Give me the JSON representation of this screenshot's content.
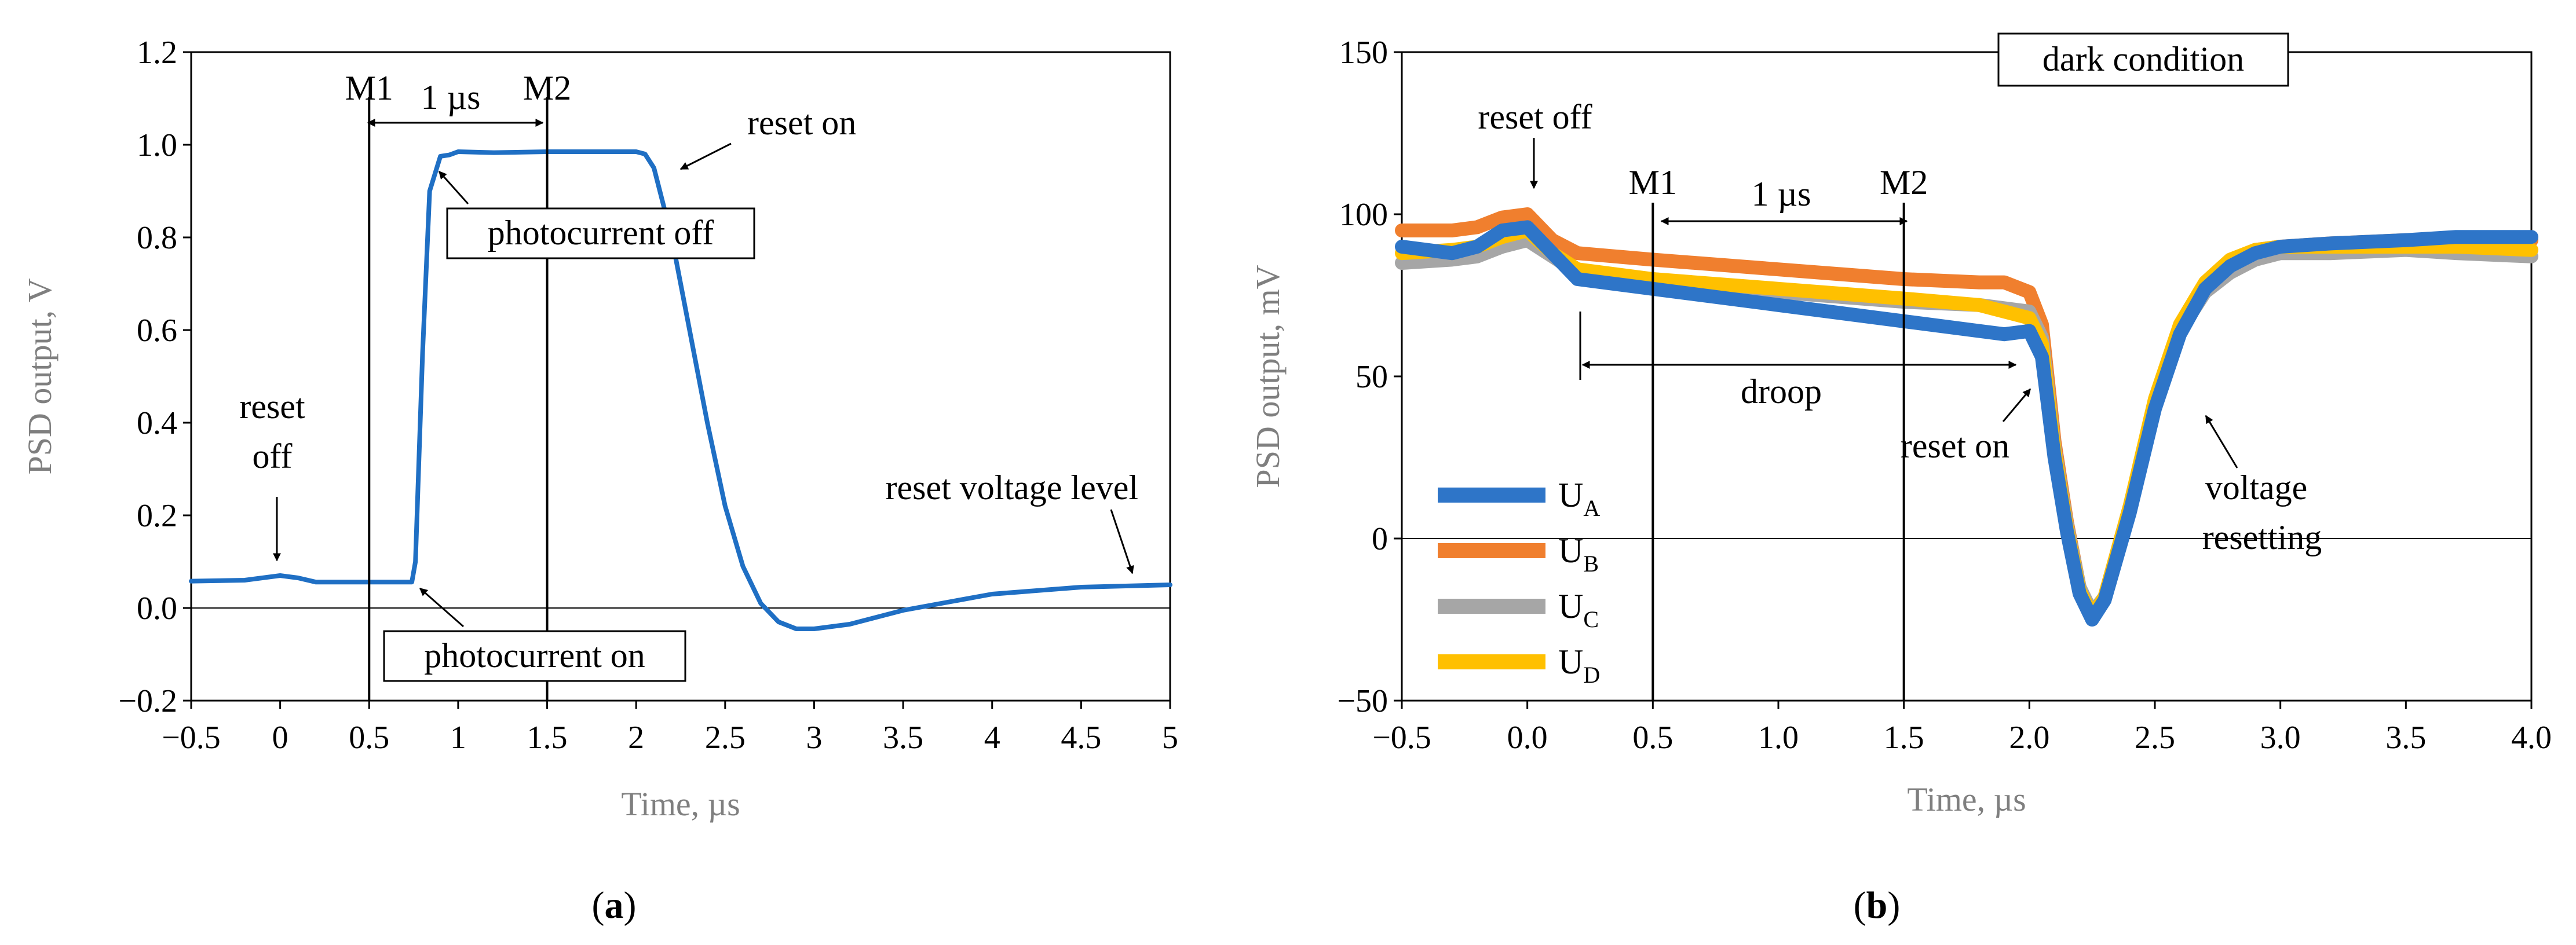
{
  "captions": {
    "a_open": "(",
    "a_letter": "a",
    "a_close": ")",
    "b_open": "(",
    "b_letter": "b",
    "b_close": ")"
  },
  "chart_data": [
    {
      "id": "a",
      "type": "line",
      "title": "",
      "xlabel": "Time, µs",
      "ylabel": "PSD output, V",
      "xlim": [
        -0.5,
        5
      ],
      "ylim": [
        -0.2,
        1.2
      ],
      "xticks": [
        -0.5,
        0,
        0.5,
        1,
        1.5,
        2,
        2.5,
        3,
        3.5,
        4,
        4.5,
        5
      ],
      "xtick_labels": [
        "−0.5",
        "0",
        "0.5",
        "1",
        "1.5",
        "2",
        "2.5",
        "3",
        "3.5",
        "4",
        "4.5",
        "5"
      ],
      "yticks": [
        -0.2,
        0,
        0.2,
        0.4,
        0.6,
        0.8,
        1,
        1.2
      ],
      "ytick_labels": [
        "−0.2",
        "0.0",
        "0.2",
        "0.4",
        "0.6",
        "0.8",
        "1.0",
        "1.2"
      ],
      "grid": false,
      "color": "#1f6fc4",
      "series": [
        {
          "name": "PSD output",
          "x": [
            -0.5,
            -0.2,
            -0.1,
            0.0,
            0.1,
            0.2,
            0.5,
            0.74,
            0.76,
            0.8,
            0.84,
            0.9,
            0.95,
            1.0,
            1.2,
            1.5,
            1.8,
            2.0,
            2.05,
            2.1,
            2.2,
            2.3,
            2.4,
            2.5,
            2.6,
            2.7,
            2.8,
            2.9,
            3.0,
            3.2,
            3.5,
            4.0,
            4.5,
            5.0
          ],
          "y": [
            0.058,
            0.06,
            0.065,
            0.07,
            0.065,
            0.056,
            0.056,
            0.056,
            0.1,
            0.55,
            0.9,
            0.975,
            0.978,
            0.985,
            0.983,
            0.985,
            0.985,
            0.985,
            0.98,
            0.95,
            0.8,
            0.6,
            0.4,
            0.22,
            0.09,
            0.01,
            -0.03,
            -0.045,
            -0.045,
            -0.035,
            -0.005,
            0.03,
            0.045,
            0.05
          ]
        }
      ],
      "markers": [
        {
          "label": "M1",
          "x": 0.5
        },
        {
          "label": "M2",
          "x": 1.5
        }
      ],
      "annotations": [
        {
          "text": "1 µs",
          "from_x": 0.5,
          "to_x": 1.5,
          "y": 1.1
        },
        {
          "text": "reset on"
        },
        {
          "text": "photocurrent off"
        },
        {
          "text": "reset off"
        },
        {
          "text": "photocurrent on"
        },
        {
          "text": "reset voltage level"
        }
      ],
      "annotation_lines": {
        "reset_off": [
          "reset",
          "off"
        ]
      }
    },
    {
      "id": "b",
      "type": "line",
      "title": "dark condition",
      "xlabel": "Time, µs",
      "ylabel": "PSD output, mV",
      "xlim": [
        -0.5,
        4.0
      ],
      "ylim": [
        -50,
        150
      ],
      "xticks": [
        -0.5,
        0.0,
        0.5,
        1.0,
        1.5,
        2.0,
        2.5,
        3.0,
        3.5,
        4.0
      ],
      "xtick_labels": [
        "−0.5",
        "0.0",
        "0.5",
        "1.0",
        "1.5",
        "2.0",
        "2.5",
        "3.0",
        "3.5",
        "4.0"
      ],
      "yticks": [
        -50,
        0,
        50,
        100,
        150
      ],
      "ytick_labels": [
        "−50",
        "0",
        "50",
        "100",
        "150"
      ],
      "grid": false,
      "legend": "bottom-left",
      "series": [
        {
          "name": "U",
          "sub": "B",
          "color": "#f07f2e",
          "x": [
            -0.5,
            -0.3,
            -0.2,
            -0.1,
            0.0,
            0.1,
            0.2,
            0.5,
            1.0,
            1.5,
            1.8,
            1.9,
            2.0,
            2.05,
            2.1,
            2.15,
            2.2,
            2.25,
            2.3,
            2.4,
            2.5,
            2.6,
            2.7,
            2.8,
            2.9,
            3.0,
            3.2,
            3.5,
            3.7,
            4.0
          ],
          "y": [
            95,
            95,
            96,
            99,
            100,
            92,
            88,
            86,
            83,
            80,
            79,
            79,
            76,
            66,
            30,
            5,
            -15,
            -24,
            -18,
            10,
            42,
            65,
            78,
            85,
            89,
            90,
            91,
            92,
            92,
            92
          ]
        },
        {
          "name": "U",
          "sub": "C",
          "color": "#a6a6a6",
          "x": [
            -0.5,
            -0.3,
            -0.2,
            -0.1,
            0.0,
            0.1,
            0.2,
            0.5,
            1.0,
            1.5,
            1.8,
            1.9,
            2.0,
            2.05,
            2.1,
            2.15,
            2.2,
            2.25,
            2.3,
            2.4,
            2.5,
            2.6,
            2.7,
            2.8,
            2.9,
            3.0,
            3.2,
            3.5,
            3.7,
            4.0
          ],
          "y": [
            85,
            86,
            87,
            90,
            92,
            87,
            82,
            80,
            76,
            73,
            72,
            71,
            70,
            62,
            28,
            4,
            -15,
            -23,
            -18,
            10,
            42,
            64,
            76,
            82,
            86,
            88,
            88,
            89,
            88,
            87
          ]
        },
        {
          "name": "U",
          "sub": "D",
          "color": "#ffc000",
          "x": [
            -0.5,
            -0.3,
            -0.2,
            -0.1,
            0.0,
            0.1,
            0.2,
            0.5,
            1.0,
            1.5,
            1.8,
            1.9,
            2.0,
            2.05,
            2.1,
            2.15,
            2.2,
            2.25,
            2.3,
            2.4,
            2.5,
            2.6,
            2.7,
            2.8,
            2.9,
            3.0,
            3.2,
            3.5,
            3.7,
            4.0
          ],
          "y": [
            88,
            89,
            90,
            93,
            95,
            88,
            83,
            80,
            77,
            74,
            72,
            70,
            68,
            60,
            27,
            3,
            -16,
            -24,
            -18,
            10,
            43,
            66,
            79,
            86,
            89,
            90,
            90,
            90,
            90,
            89
          ]
        },
        {
          "name": "U",
          "sub": "A",
          "color": "#2e75c8",
          "x": [
            -0.5,
            -0.3,
            -0.2,
            -0.1,
            0.0,
            0.1,
            0.2,
            0.5,
            1.0,
            1.5,
            1.8,
            1.9,
            2.0,
            2.05,
            2.1,
            2.15,
            2.2,
            2.25,
            2.3,
            2.4,
            2.5,
            2.6,
            2.7,
            2.8,
            2.9,
            3.0,
            3.2,
            3.5,
            3.7,
            4.0
          ],
          "y": [
            90,
            88,
            90,
            95,
            96,
            88,
            80,
            77,
            72,
            67,
            64,
            63,
            64,
            56,
            25,
            2,
            -17,
            -25,
            -19,
            8,
            40,
            63,
            77,
            84,
            88,
            90,
            91,
            92,
            93,
            93
          ]
        }
      ],
      "legend_order": [
        "A",
        "B",
        "C",
        "D"
      ],
      "markers": [
        {
          "label": "M1",
          "x": 0.5
        },
        {
          "label": "M2",
          "x": 1.5
        }
      ],
      "annotations": [
        {
          "text": "1 µs",
          "from_x": 0.5,
          "to_x": 1.5,
          "y": 105
        },
        {
          "text": "droop",
          "from_x": 0.18,
          "to_x": 1.92,
          "y": 52
        },
        {
          "text": "reset off"
        },
        {
          "text": "reset on"
        },
        {
          "text": "voltage"
        },
        {
          "text": "resetting"
        }
      ]
    }
  ]
}
